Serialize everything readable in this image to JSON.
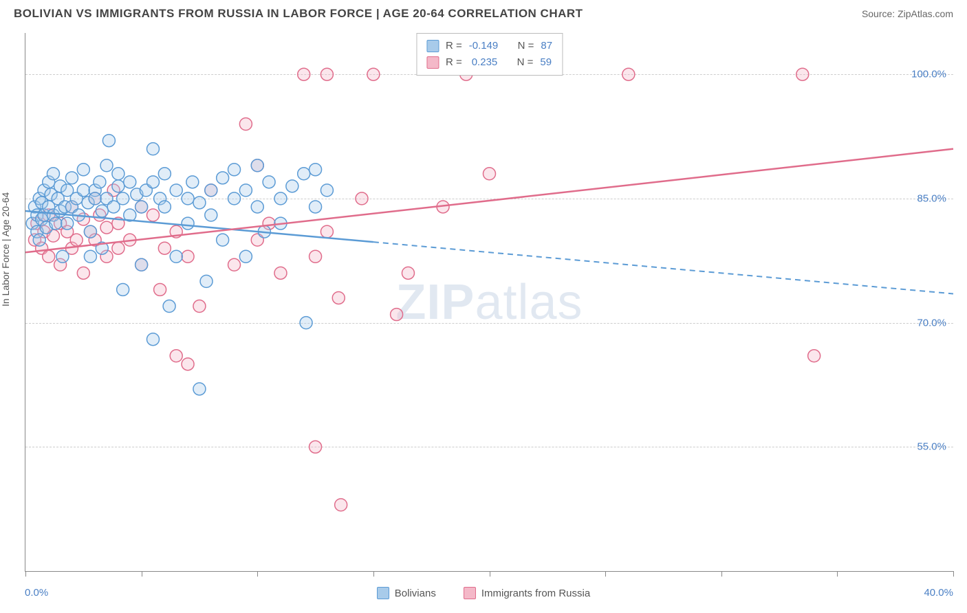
{
  "title": "BOLIVIAN VS IMMIGRANTS FROM RUSSIA IN LABOR FORCE | AGE 20-64 CORRELATION CHART",
  "source": "Source: ZipAtlas.com",
  "y_axis_title": "In Labor Force | Age 20-64",
  "watermark_bold": "ZIP",
  "watermark_light": "atlas",
  "chart": {
    "type": "scatter",
    "background_color": "#ffffff",
    "grid_color": "#cccccc",
    "axis_color": "#888888",
    "label_color": "#4a7fc4",
    "xlim": [
      0,
      40
    ],
    "ylim": [
      40,
      105
    ],
    "x_ticks": [
      0,
      5,
      10,
      15,
      20,
      25,
      30,
      35,
      40
    ],
    "x_tick_labels": {
      "0": "0.0%",
      "40": "40.0%"
    },
    "y_gridlines": [
      55,
      70,
      85,
      100
    ],
    "y_tick_labels": {
      "55": "55.0%",
      "70": "70.0%",
      "85": "85.0%",
      "100": "100.0%"
    },
    "marker_radius": 9,
    "marker_fill_opacity": 0.35,
    "marker_stroke_width": 1.5,
    "line_width": 2.5,
    "series": [
      {
        "name": "Bolivians",
        "color": "#5b9bd5",
        "fill": "#a8cbea",
        "R": "-0.149",
        "N": "87",
        "trend": {
          "x1": 0,
          "y1": 83.5,
          "x2": 15,
          "y2": 81,
          "x_ext": 40,
          "y_ext": 73.5,
          "dash_after": 15
        },
        "points": [
          [
            0.3,
            82
          ],
          [
            0.4,
            84
          ],
          [
            0.5,
            81
          ],
          [
            0.5,
            83
          ],
          [
            0.6,
            85
          ],
          [
            0.6,
            80
          ],
          [
            0.7,
            82.5
          ],
          [
            0.7,
            84.5
          ],
          [
            0.8,
            83
          ],
          [
            0.8,
            86
          ],
          [
            0.9,
            81.5
          ],
          [
            1.0,
            84
          ],
          [
            1.0,
            87
          ],
          [
            1.1,
            85.5
          ],
          [
            1.2,
            83
          ],
          [
            1.2,
            88
          ],
          [
            1.3,
            82
          ],
          [
            1.4,
            85
          ],
          [
            1.5,
            86.5
          ],
          [
            1.5,
            83.5
          ],
          [
            1.7,
            84
          ],
          [
            1.8,
            82
          ],
          [
            1.8,
            86
          ],
          [
            2.0,
            87.5
          ],
          [
            2.0,
            84
          ],
          [
            2.2,
            85
          ],
          [
            2.3,
            83
          ],
          [
            2.5,
            86
          ],
          [
            2.5,
            88.5
          ],
          [
            2.7,
            84.5
          ],
          [
            2.8,
            81
          ],
          [
            3.0,
            86
          ],
          [
            3.0,
            85
          ],
          [
            3.2,
            87
          ],
          [
            3.3,
            83.5
          ],
          [
            3.5,
            85
          ],
          [
            3.5,
            89
          ],
          [
            3.6,
            92
          ],
          [
            3.8,
            84
          ],
          [
            4.0,
            86.5
          ],
          [
            4.0,
            88
          ],
          [
            4.2,
            85
          ],
          [
            4.5,
            87
          ],
          [
            4.5,
            83
          ],
          [
            4.8,
            85.5
          ],
          [
            5.0,
            84
          ],
          [
            5.0,
            77
          ],
          [
            5.2,
            86
          ],
          [
            5.5,
            87
          ],
          [
            5.5,
            91
          ],
          [
            5.5,
            68
          ],
          [
            5.8,
            85
          ],
          [
            6.0,
            84
          ],
          [
            6.0,
            88
          ],
          [
            6.5,
            86
          ],
          [
            6.5,
            78
          ],
          [
            7.0,
            85
          ],
          [
            7.0,
            82
          ],
          [
            7.2,
            87
          ],
          [
            7.5,
            84.5
          ],
          [
            7.5,
            62
          ],
          [
            8.0,
            86
          ],
          [
            8.0,
            83
          ],
          [
            8.5,
            87.5
          ],
          [
            8.5,
            80
          ],
          [
            9.0,
            85
          ],
          [
            9.0,
            88.5
          ],
          [
            9.5,
            78
          ],
          [
            9.5,
            86
          ],
          [
            10.0,
            84
          ],
          [
            10.0,
            89
          ],
          [
            10.3,
            81
          ],
          [
            10.5,
            87
          ],
          [
            11.0,
            85
          ],
          [
            11.0,
            82
          ],
          [
            11.5,
            86.5
          ],
          [
            12.0,
            88
          ],
          [
            12.1,
            70
          ],
          [
            12.5,
            84
          ],
          [
            12.5,
            88.5
          ],
          [
            13.0,
            86
          ],
          [
            4.2,
            74
          ],
          [
            2.8,
            78
          ],
          [
            6.2,
            72
          ],
          [
            7.8,
            75
          ],
          [
            3.3,
            79
          ],
          [
            1.6,
            78
          ]
        ]
      },
      {
        "name": "Immigrants from Russia",
        "color": "#e06c8b",
        "fill": "#f4b8c8",
        "R": "0.235",
        "N": "59",
        "trend": {
          "x1": 0,
          "y1": 78.5,
          "x2": 40,
          "y2": 91,
          "x_ext": 40,
          "y_ext": 91,
          "dash_after": 40
        },
        "points": [
          [
            0.4,
            80
          ],
          [
            0.5,
            82
          ],
          [
            0.7,
            79
          ],
          [
            0.8,
            81
          ],
          [
            1.0,
            83
          ],
          [
            1.0,
            78
          ],
          [
            1.2,
            80.5
          ],
          [
            1.5,
            82
          ],
          [
            1.5,
            77
          ],
          [
            1.8,
            81
          ],
          [
            2.0,
            79
          ],
          [
            2.0,
            84
          ],
          [
            2.2,
            80
          ],
          [
            2.5,
            82.5
          ],
          [
            2.5,
            76
          ],
          [
            2.8,
            81
          ],
          [
            3.0,
            80
          ],
          [
            3.0,
            85
          ],
          [
            3.2,
            83
          ],
          [
            3.5,
            78
          ],
          [
            3.5,
            81.5
          ],
          [
            3.8,
            86
          ],
          [
            4.0,
            79
          ],
          [
            4.0,
            82
          ],
          [
            4.5,
            80
          ],
          [
            5.0,
            77
          ],
          [
            5.0,
            84
          ],
          [
            5.5,
            83
          ],
          [
            5.8,
            74
          ],
          [
            6.0,
            79
          ],
          [
            6.5,
            81
          ],
          [
            6.5,
            66
          ],
          [
            7.0,
            78
          ],
          [
            7.0,
            65
          ],
          [
            7.5,
            72
          ],
          [
            8.0,
            86
          ],
          [
            9.0,
            77
          ],
          [
            9.5,
            94
          ],
          [
            10.0,
            89
          ],
          [
            10.0,
            80
          ],
          [
            10.5,
            82
          ],
          [
            11.0,
            76
          ],
          [
            12.0,
            100
          ],
          [
            12.5,
            78
          ],
          [
            12.5,
            55
          ],
          [
            13.0,
            100
          ],
          [
            13.0,
            81
          ],
          [
            13.5,
            73
          ],
          [
            13.6,
            48
          ],
          [
            14.5,
            85
          ],
          [
            15.0,
            100
          ],
          [
            16.0,
            71
          ],
          [
            16.5,
            76
          ],
          [
            18.0,
            84
          ],
          [
            19.0,
            100
          ],
          [
            20.0,
            88
          ],
          [
            26.0,
            100
          ],
          [
            33.5,
            100
          ],
          [
            34.0,
            66
          ]
        ]
      }
    ]
  },
  "legend": {
    "series1_label": "Bolivians",
    "series2_label": "Immigrants from Russia"
  },
  "stats_labels": {
    "R": "R =",
    "N": "N ="
  }
}
